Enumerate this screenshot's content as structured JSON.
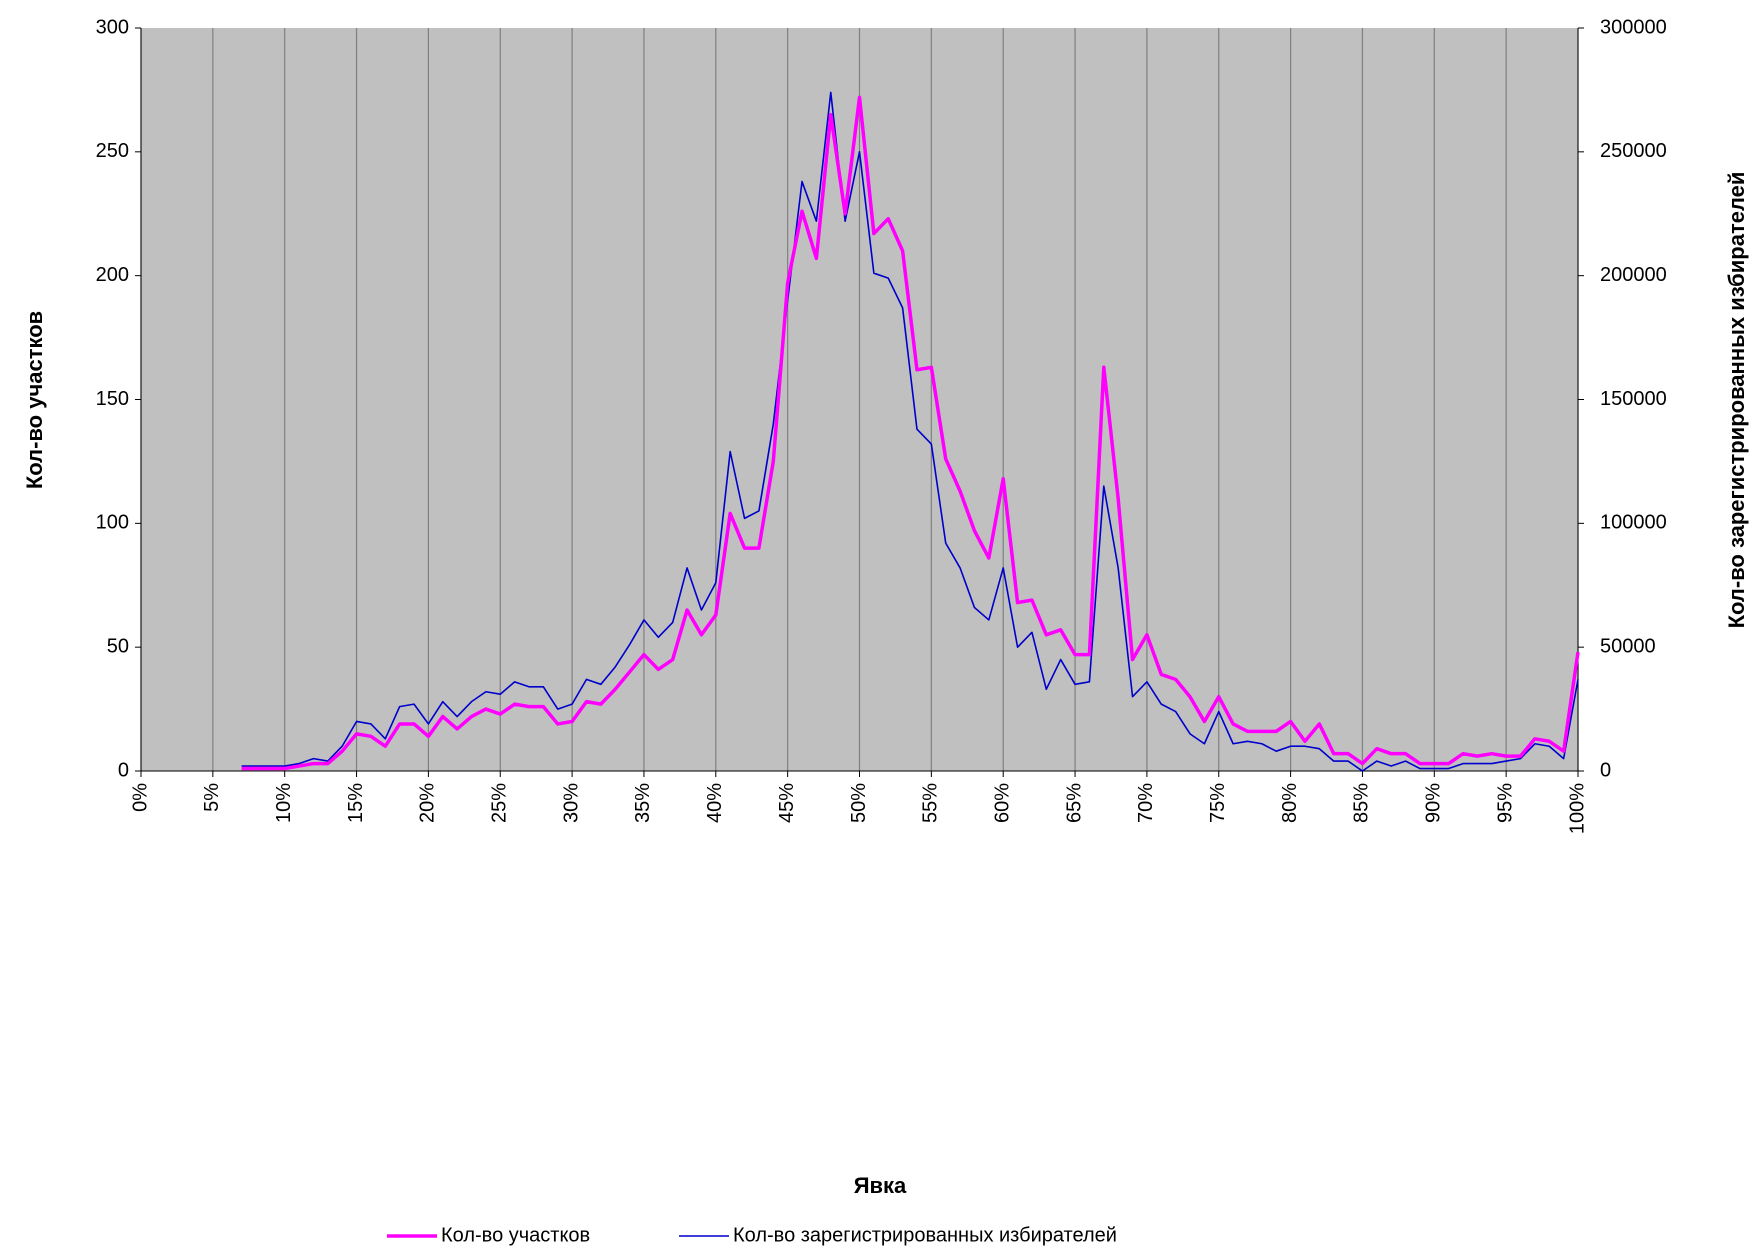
{
  "chart_data": {
    "type": "line",
    "xlabel": "Явка",
    "ylabel": "Кол-во участков",
    "y2label": "Кол-во зарегистрированных избирателей",
    "x": [
      7,
      8,
      9,
      10,
      11,
      12,
      13,
      14,
      15,
      16,
      17,
      18,
      19,
      20,
      21,
      22,
      23,
      24,
      25,
      26,
      27,
      28,
      29,
      30,
      31,
      32,
      33,
      34,
      35,
      36,
      37,
      38,
      39,
      40,
      41,
      42,
      43,
      44,
      45,
      46,
      47,
      48,
      49,
      50,
      51,
      52,
      53,
      54,
      55,
      56,
      57,
      58,
      59,
      60,
      61,
      62,
      63,
      64,
      65,
      66,
      67,
      68,
      69,
      70,
      71,
      72,
      73,
      74,
      75,
      76,
      77,
      78,
      79,
      80,
      81,
      82,
      83,
      84,
      85,
      86,
      87,
      88,
      89,
      90,
      91,
      92,
      93,
      94,
      95,
      96,
      97,
      98,
      99,
      100
    ],
    "series": [
      {
        "name": "Кол-во участков",
        "color": "#ff00ff",
        "axis": "y",
        "values": [
          1,
          1,
          1,
          1,
          2,
          3,
          3,
          8,
          15,
          14,
          10,
          19,
          19,
          14,
          22,
          17,
          22,
          25,
          23,
          27,
          26,
          26,
          19,
          20,
          28,
          27,
          33,
          40,
          47,
          41,
          45,
          65,
          55,
          63,
          104,
          90,
          90,
          125,
          197,
          226,
          207,
          265,
          225,
          272,
          217,
          223,
          210,
          162,
          163,
          126,
          113,
          97,
          86,
          118,
          68,
          69,
          55,
          57,
          47,
          47,
          163,
          110,
          45,
          55,
          39,
          37,
          30,
          20,
          30,
          19,
          16,
          16,
          16,
          20,
          12,
          19,
          7,
          7,
          3,
          9,
          7,
          7,
          3,
          3,
          3,
          7,
          6,
          7,
          6,
          6,
          13,
          12,
          8,
          48
        ]
      },
      {
        "name": "Кол-во зарегистрированных избирателей",
        "color": "#0000cc",
        "axis": "y2",
        "values": [
          2000,
          2000,
          2000,
          2000,
          3000,
          5000,
          4000,
          10000,
          20000,
          19000,
          13000,
          26000,
          27000,
          19000,
          28000,
          22000,
          28000,
          32000,
          31000,
          36000,
          34000,
          34000,
          25000,
          27000,
          37000,
          35000,
          42000,
          51000,
          61000,
          54000,
          60000,
          82000,
          65000,
          76000,
          129000,
          102000,
          105000,
          140000,
          190000,
          238000,
          222000,
          274000,
          222000,
          250000,
          201000,
          199000,
          187000,
          138000,
          132000,
          92000,
          82000,
          66000,
          61000,
          82000,
          50000,
          56000,
          33000,
          45000,
          35000,
          36000,
          115000,
          82000,
          30000,
          36000,
          27000,
          24000,
          15000,
          11000,
          24000,
          11000,
          12000,
          11000,
          8000,
          10000,
          10000,
          9000,
          4000,
          4000,
          0,
          4000,
          2000,
          4000,
          1000,
          1000,
          1000,
          3000,
          3000,
          3000,
          4000,
          5000,
          11000,
          10000,
          5000,
          37000
        ]
      }
    ],
    "xlim": [
      0,
      100
    ],
    "xticks": [
      {
        "value": 0,
        "label": "0%"
      },
      {
        "value": 5,
        "label": "5%"
      },
      {
        "value": 10,
        "label": "10%"
      },
      {
        "value": 15,
        "label": "15%"
      },
      {
        "value": 20,
        "label": "20%"
      },
      {
        "value": 25,
        "label": "25%"
      },
      {
        "value": 30,
        "label": "30%"
      },
      {
        "value": 35,
        "label": "35%"
      },
      {
        "value": 40,
        "label": "40%"
      },
      {
        "value": 45,
        "label": "45%"
      },
      {
        "value": 50,
        "label": "50%"
      },
      {
        "value": 55,
        "label": "55%"
      },
      {
        "value": 60,
        "label": "60%"
      },
      {
        "value": 65,
        "label": "65%"
      },
      {
        "value": 70,
        "label": "70%"
      },
      {
        "value": 75,
        "label": "75%"
      },
      {
        "value": 80,
        "label": "80%"
      },
      {
        "value": 85,
        "label": "85%"
      },
      {
        "value": 90,
        "label": "90%"
      },
      {
        "value": 95,
        "label": "95%"
      },
      {
        "value": 100,
        "label": "100%"
      }
    ],
    "ylim": [
      0,
      300
    ],
    "yticks": [
      0,
      50,
      100,
      150,
      200,
      250,
      300
    ],
    "y2lim": [
      0,
      300000
    ],
    "y2ticks": [
      0,
      50000,
      100000,
      150000,
      200000,
      250000,
      300000
    ],
    "grid": "x",
    "legend": "bottom"
  }
}
